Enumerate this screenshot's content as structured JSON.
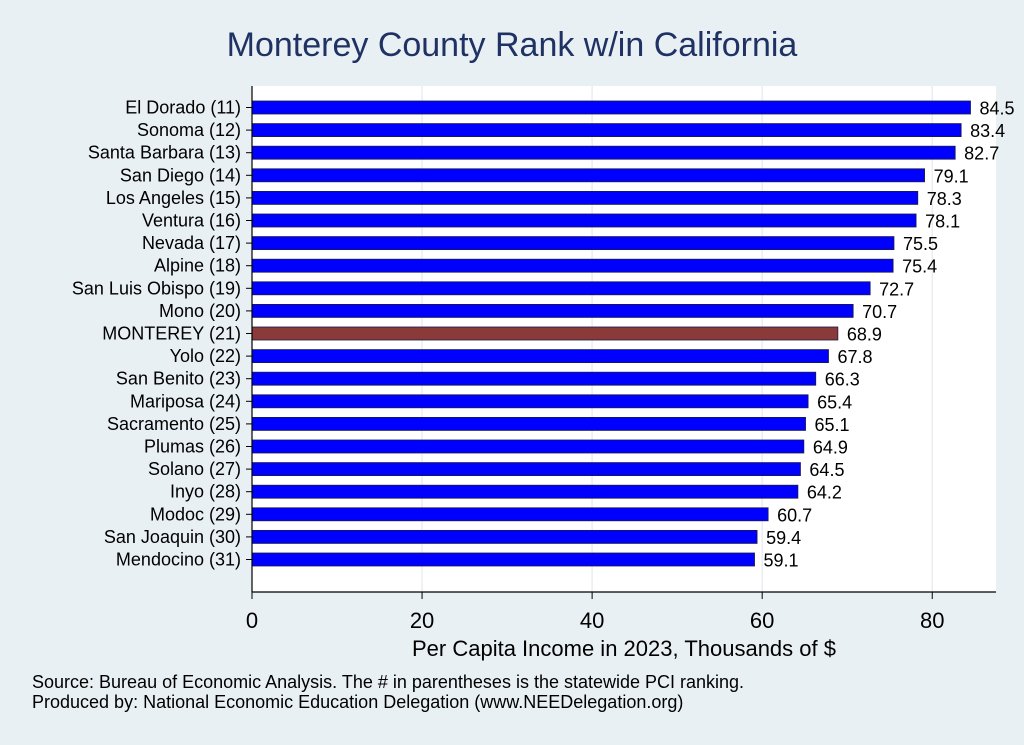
{
  "chart_data": {
    "type": "bar",
    "orientation": "horizontal",
    "title": "Monterey County Rank w/in California",
    "xlabel": "Per Capita Income in 2023, Thousands of $",
    "ylabel": "",
    "xlim": [
      0,
      87.5
    ],
    "xticks": [
      0,
      20,
      40,
      60,
      80
    ],
    "grid": true,
    "categories": [
      "El Dorado (11)",
      "Sonoma (12)",
      "Santa Barbara (13)",
      "San Diego (14)",
      "Los Angeles (15)",
      "Ventura (16)",
      "Nevada (17)",
      "Alpine (18)",
      "San Luis Obispo (19)",
      "Mono (20)",
      "MONTEREY (21)",
      "Yolo (22)",
      "San Benito (23)",
      "Mariposa (24)",
      "Sacramento (25)",
      "Plumas (26)",
      "Solano (27)",
      "Inyo (28)",
      "Modoc (29)",
      "San Joaquin (30)",
      "Mendocino (31)"
    ],
    "values": [
      84.5,
      83.4,
      82.7,
      79.1,
      78.3,
      78.1,
      75.5,
      75.4,
      72.7,
      70.7,
      68.9,
      67.8,
      66.3,
      65.4,
      65.1,
      64.9,
      64.5,
      64.2,
      60.7,
      59.4,
      59.1
    ],
    "value_labels": [
      "84.5",
      "83.4",
      "82.7",
      "79.1",
      "78.3",
      "78.1",
      "75.5",
      "75.4",
      "72.7",
      "70.7",
      "68.9",
      "67.8",
      "66.3",
      "65.4",
      "65.1",
      "64.9",
      "64.5",
      "64.2",
      "60.7",
      "59.4",
      "59.1"
    ],
    "highlight_category": "MONTEREY (21)",
    "colors": {
      "bar": "#0000ff",
      "highlight": "#8b3a3a",
      "background": "#e9f0f4",
      "plot_bg": "#ffffff",
      "title": "#1f3263"
    }
  },
  "notes": {
    "source": "Source: Bureau of Economic Analysis. The # in parentheses is the statewide PCI ranking.",
    "produced": "Produced by: National Economic Education Delegation (www.NEEDelegation.org)"
  }
}
